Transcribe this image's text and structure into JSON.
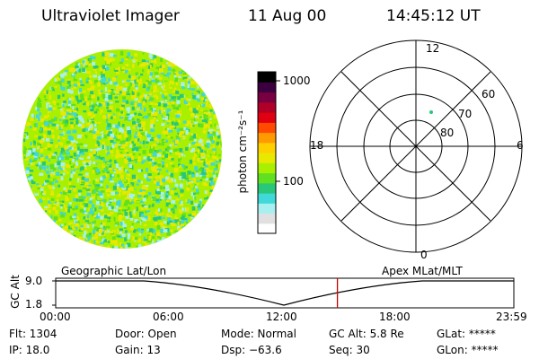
{
  "header": {
    "instrument": "Ultraviolet Imager",
    "date": "11 Aug 00",
    "time": "14:45:12 UT"
  },
  "colorbar": {
    "unit_label": "photon cm⁻²s⁻¹",
    "ticks": [
      "1000",
      "100"
    ],
    "scale": "log",
    "colors": [
      "#ffffff",
      "#e0e0e0",
      "#a8f0f0",
      "#40d8d8",
      "#28c878",
      "#60e020",
      "#a8f000",
      "#e8e800",
      "#ffd000",
      "#ff9a00",
      "#ff4a00",
      "#e00010",
      "#b00028",
      "#780040",
      "#3c0040",
      "#000000"
    ]
  },
  "polar_plot": {
    "mlt_labels": {
      "top": "12",
      "left": "18",
      "right": "6",
      "bottom": "0"
    },
    "lat_labels": [
      "60",
      "70",
      "80"
    ],
    "marker_color": "#28c878"
  },
  "timeline": {
    "left_label": "Geographic Lat/Lon",
    "right_label": "Apex MLat/MLT",
    "yaxis_label": "GC Alt",
    "y_ticks": [
      "9.0",
      "1.8"
    ],
    "x_ticks": [
      "00:00",
      "06:00",
      "12:00",
      "18:00",
      "23:59"
    ],
    "current_time_fraction": 0.615,
    "cursor_color": "#cc0000"
  },
  "status": {
    "flt": "Flt: 1304",
    "ip": "IP: 18.0",
    "door": "Door: Open",
    "gain": "Gain: 13",
    "mode": "Mode: Normal",
    "dsp": "Dsp:  −63.6",
    "gc_alt": "GC Alt: 5.8 Re",
    "seq": "Seq: 30",
    "glat": "GLat: *****",
    "glon": "GLon: *****"
  }
}
